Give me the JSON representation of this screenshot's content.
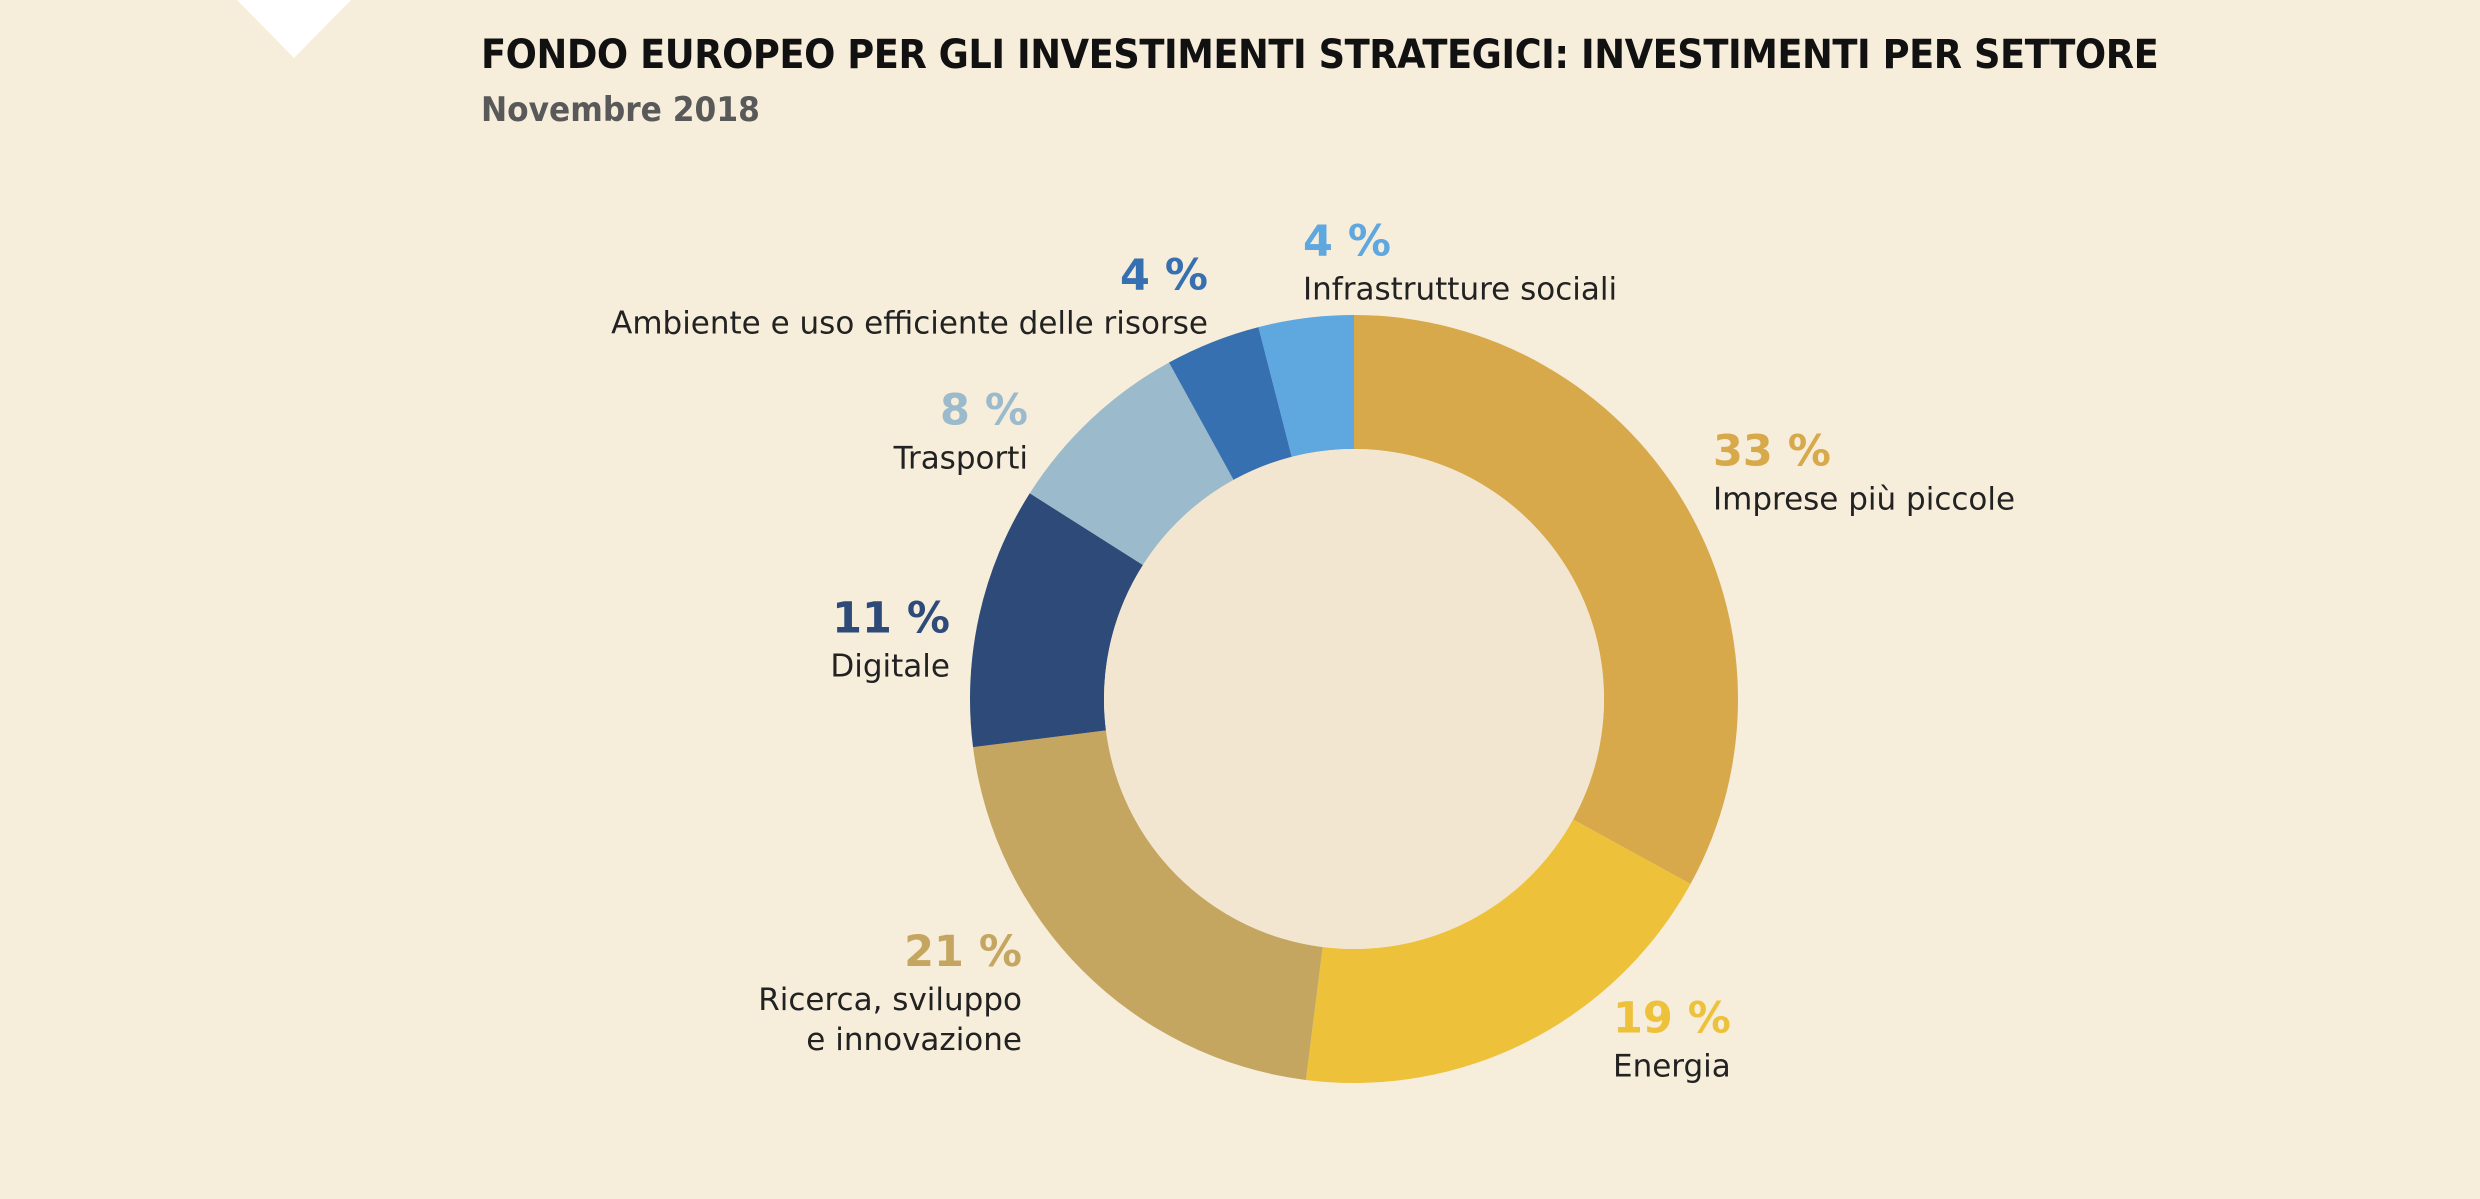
{
  "title": "FONDO EUROPEO PER GLI INVESTIMENTI STRATEGICI: INVESTIMENTI PER SETTORE",
  "subtitle": "Novembre 2018",
  "chart_data": {
    "type": "pie",
    "donut": true,
    "title": "FONDO EUROPEO PER GLI INVESTIMENTI STRATEGICI: INVESTIMENTI PER SETTORE",
    "subtitle": "Novembre 2018",
    "unit": "%",
    "start": "top, clockwise",
    "slices": [
      {
        "label": "Imprese più piccole",
        "value": 33,
        "value_label": "33 %",
        "color": "#d7a94b"
      },
      {
        "label": "Energia",
        "value": 19,
        "value_label": "19 %",
        "color": "#eec13a"
      },
      {
        "label": "Ricerca, sviluppo e innovazione",
        "label_lines": [
          "Ricerca, sviluppo",
          "e innovazione"
        ],
        "value": 21,
        "value_label": "21 %",
        "color": "#c4a660"
      },
      {
        "label": "Digitale",
        "value": 11,
        "value_label": "11 %",
        "color": "#2d4a78"
      },
      {
        "label": "Trasporti",
        "value": 8,
        "value_label": "8 %",
        "color": "#9bbacb"
      },
      {
        "label": "Ambiente e uso efficiente delle risorse",
        "value": 4,
        "value_label": "4 %",
        "color": "#3670b0"
      },
      {
        "label": "Infrastrutture sociali",
        "value": 4,
        "value_label": "4 %",
        "color": "#5fa7df"
      }
    ],
    "center_color": "#f3e6d0",
    "background": "#f6eddb"
  }
}
